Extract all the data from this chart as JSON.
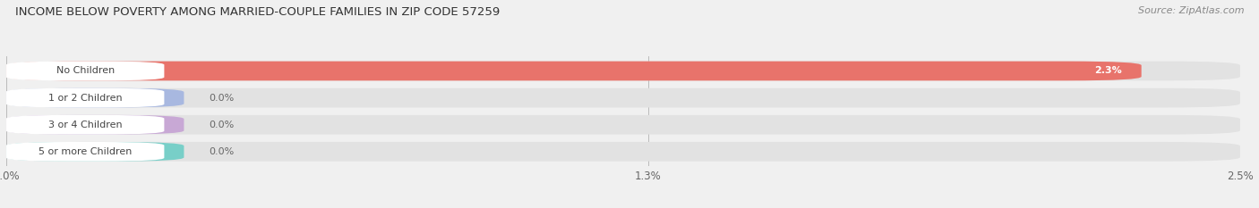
{
  "title": "INCOME BELOW POVERTY AMONG MARRIED-COUPLE FAMILIES IN ZIP CODE 57259",
  "source": "Source: ZipAtlas.com",
  "categories": [
    "No Children",
    "1 or 2 Children",
    "3 or 4 Children",
    "5 or more Children"
  ],
  "values": [
    2.3,
    0.0,
    0.0,
    0.0
  ],
  "bar_colors": [
    "#e8736b",
    "#a8b8e0",
    "#c8a8d5",
    "#78cfc8"
  ],
  "background_color": "#f0f0f0",
  "bar_bg_color": "#e2e2e2",
  "label_bg_color": "#ffffff",
  "xlim": [
    0,
    2.5
  ],
  "xticks": [
    0.0,
    1.3,
    2.5
  ],
  "xticklabels": [
    "0.0%",
    "1.3%",
    "2.5%"
  ],
  "bar_height": 0.72,
  "figsize": [
    14.06,
    2.33
  ],
  "dpi": 100,
  "value_label_color_inside": "#ffffff",
  "value_label_color_outside": "#666666"
}
